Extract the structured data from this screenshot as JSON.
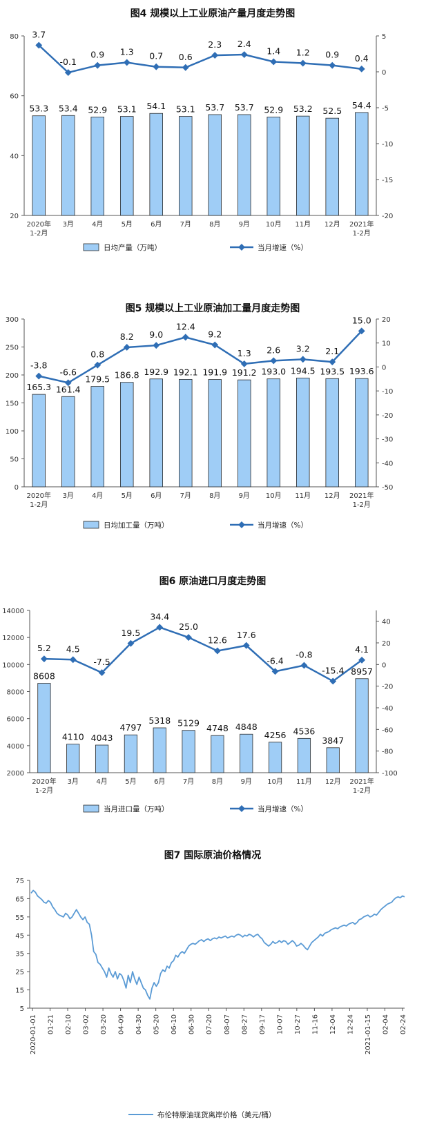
{
  "chart_data": [
    {
      "type": "bar+line",
      "title": "图4  规模以上工业原油产量月度走势图",
      "categories": [
        "2020年\n1-2月",
        "3月",
        "4月",
        "5月",
        "6月",
        "7月",
        "8月",
        "9月",
        "10月",
        "11月",
        "12月",
        "2021年\n1-2月"
      ],
      "bar_series": {
        "name": "日均产量（万吨）",
        "values": [
          53.3,
          53.4,
          52.9,
          53.1,
          54.1,
          53.1,
          53.7,
          53.7,
          52.9,
          53.2,
          52.5,
          54.4
        ]
      },
      "line_series": {
        "name": "当月增速（%）",
        "values": [
          3.7,
          -0.1,
          0.9,
          1.3,
          0.7,
          0.6,
          2.3,
          2.4,
          1.4,
          1.2,
          0.9,
          0.4
        ]
      },
      "left_axis": {
        "ylim": [
          20,
          80
        ],
        "ticks": [
          20,
          40,
          60,
          80
        ]
      },
      "right_axis": {
        "ylim": [
          -20,
          5
        ],
        "ticks": [
          5,
          0,
          -5,
          -10,
          -15,
          -20
        ]
      }
    },
    {
      "type": "bar+line",
      "title": "图5  规模以上工业原油加工量月度走势图",
      "categories": [
        "2020年\n1-2月",
        "3月",
        "4月",
        "5月",
        "6月",
        "7月",
        "8月",
        "9月",
        "10月",
        "11月",
        "12月",
        "2021年\n1-2月"
      ],
      "bar_series": {
        "name": "日均加工量（万吨）",
        "values": [
          165.3,
          161.4,
          179.5,
          186.8,
          192.9,
          192.1,
          191.9,
          191.2,
          193.0,
          194.5,
          193.5,
          193.6
        ]
      },
      "bar_labels": [
        "165.3",
        "161.4",
        "179.5",
        "186.8",
        "192.9",
        "192.1",
        "191.9",
        "191.2",
        "193.0",
        "194.5",
        "193.5",
        "193.6"
      ],
      "line_series": {
        "name": "当月增速（%）",
        "values": [
          -3.8,
          -6.6,
          0.8,
          8.2,
          9.0,
          12.4,
          9.2,
          1.3,
          2.6,
          3.2,
          2.1,
          15.0
        ]
      },
      "line_labels": [
        "-3.8",
        "-6.6",
        "0.8",
        "8.2",
        "9.0",
        "12.4",
        "9.2",
        "1.3",
        "2.6",
        "3.2",
        "2.1",
        "15.0"
      ],
      "left_axis": {
        "ylim": [
          0,
          300
        ],
        "ticks": [
          0,
          50,
          100,
          150,
          200,
          250,
          300
        ]
      },
      "right_axis": {
        "ylim": [
          -50,
          20
        ],
        "ticks": [
          20,
          10,
          0,
          -10,
          -20,
          -30,
          -40,
          -50
        ]
      }
    },
    {
      "type": "bar+line",
      "title": "图6  原油进口月度走势图",
      "categories": [
        "2020年\n1-2月",
        "3月",
        "4月",
        "5月",
        "6月",
        "7月",
        "8月",
        "9月",
        "10月",
        "11月",
        "12月",
        "2021年\n1-2月"
      ],
      "bar_series": {
        "name": "当月进口量（万吨）",
        "values": [
          8608,
          4110,
          4043,
          4797,
          5318,
          5129,
          4748,
          4848,
          4256,
          4536,
          3847,
          8957
        ]
      },
      "line_series": {
        "name": "当月增速（%）",
        "values": [
          5.2,
          4.5,
          -7.5,
          19.5,
          34.4,
          25.0,
          12.6,
          17.6,
          -6.4,
          -0.8,
          -15.4,
          4.1
        ]
      },
      "line_labels": [
        "5.2",
        "4.5",
        "-7.5",
        "19.5",
        "34.4",
        "25.0",
        "12.6",
        "17.6",
        "-6.4",
        "-0.8",
        "-15.4",
        "4.1"
      ],
      "left_axis": {
        "ylim": [
          2000,
          14000
        ],
        "ticks": [
          2000,
          4000,
          6000,
          8000,
          10000,
          12000,
          14000
        ]
      },
      "right_axis": {
        "ylim": [
          -100,
          50
        ],
        "ticks": [
          40,
          20,
          0,
          -20,
          -40,
          -60,
          -80,
          -100
        ]
      }
    },
    {
      "type": "line",
      "title": "图7  国际原油价格情况",
      "series_name": "布伦特原油现货离岸价格（美元/桶）",
      "ylim": [
        5,
        75
      ],
      "yticks": [
        5,
        15,
        25,
        35,
        45,
        55,
        65,
        75
      ],
      "x_tick_labels": [
        "2020-01-01",
        "01-21",
        "02-10",
        "03-02",
        "03-20",
        "04-09",
        "04-30",
        "05-20",
        "06-10",
        "06-30",
        "07-20",
        "08-07",
        "08-27",
        "09-17",
        "10-07",
        "10-27",
        "11-16",
        "12-04",
        "12-24",
        "2021-01-15",
        "02-04",
        "02-24"
      ],
      "values": [
        68.0,
        69.5,
        68.5,
        66.5,
        65.5,
        64.5,
        63.0,
        62.5,
        64.0,
        63.0,
        60.5,
        59.0,
        57.0,
        56.0,
        55.5,
        55.0,
        57.0,
        56.0,
        54.0,
        55.0,
        57.0,
        59.0,
        57.0,
        55.0,
        53.5,
        55.0,
        52.0,
        51.0,
        45.0,
        36.0,
        34.5,
        30.0,
        29.0,
        27.0,
        25.0,
        22.0,
        27.0,
        24.0,
        22.0,
        25.0,
        21.0,
        24.0,
        23.0,
        20.0,
        16.0,
        23.0,
        19.0,
        25.0,
        21.0,
        18.0,
        22.0,
        19.0,
        16.0,
        15.0,
        12.0,
        10.0,
        16.0,
        19.0,
        17.0,
        19.0,
        24.0,
        26.0,
        25.0,
        28.0,
        27.0,
        30.0,
        31.0,
        34.0,
        33.0,
        35.0,
        36.0,
        35.0,
        37.0,
        39.0,
        40.0,
        40.5,
        40.0,
        41.0,
        42.0,
        42.5,
        41.5,
        42.5,
        43.0,
        42.0,
        43.0,
        43.5,
        43.0,
        44.0,
        43.5,
        44.0,
        44.5,
        43.5,
        44.0,
        44.5,
        44.0,
        45.0,
        45.5,
        45.0,
        44.0,
        45.0,
        44.5,
        45.5,
        45.0,
        44.0,
        45.0,
        45.5,
        44.0,
        43.0,
        41.0,
        40.0,
        39.0,
        40.0,
        41.5,
        40.5,
        41.0,
        42.0,
        41.0,
        42.0,
        41.5,
        40.0,
        41.0,
        42.0,
        41.0,
        39.0,
        39.5,
        40.5,
        39.5,
        38.0,
        37.0,
        39.0,
        41.0,
        42.0,
        43.0,
        44.0,
        45.5,
        44.5,
        46.0,
        46.5,
        47.0,
        48.0,
        48.5,
        49.0,
        48.5,
        49.5,
        50.0,
        50.5,
        50.0,
        51.0,
        51.5,
        52.0,
        51.0,
        52.0,
        53.5,
        54.0,
        55.0,
        55.5,
        56.0,
        55.0,
        55.5,
        56.5,
        56.0,
        57.5,
        59.0,
        60.0,
        61.0,
        62.0,
        62.5,
        63.0,
        64.5,
        65.5,
        66.0,
        65.5,
        66.5,
        66.0
      ]
    }
  ]
}
